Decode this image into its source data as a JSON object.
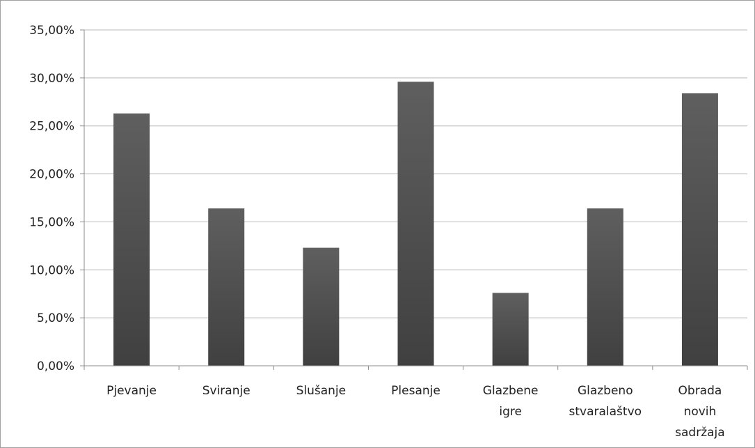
{
  "chart_data": {
    "type": "bar",
    "categories": [
      [
        "Pjevanje"
      ],
      [
        "Sviranje"
      ],
      [
        "Slušanje"
      ],
      [
        "Plesanje"
      ],
      [
        "Glazbene",
        "igre"
      ],
      [
        "Glazbeno",
        "stvaralaštvo"
      ],
      [
        "Obrada",
        "novih",
        "sadržaja"
      ]
    ],
    "values": [
      26.3,
      16.4,
      12.3,
      29.6,
      7.6,
      16.4,
      28.4
    ],
    "ylim": [
      0,
      35
    ],
    "yticks": [
      "0,00%",
      "5,00%",
      "10,00%",
      "15,00%",
      "20,00%",
      "25,00%",
      "30,00%",
      "35,00%"
    ],
    "title": "",
    "xlabel": "",
    "ylabel": "",
    "grid": true,
    "legend": "none",
    "colors": {
      "bar": "#555555",
      "bar_top": "#5f5f5f",
      "bar_bottom": "#404040",
      "grid": "#b8b8b8",
      "axis": "#8c8c8c"
    }
  }
}
